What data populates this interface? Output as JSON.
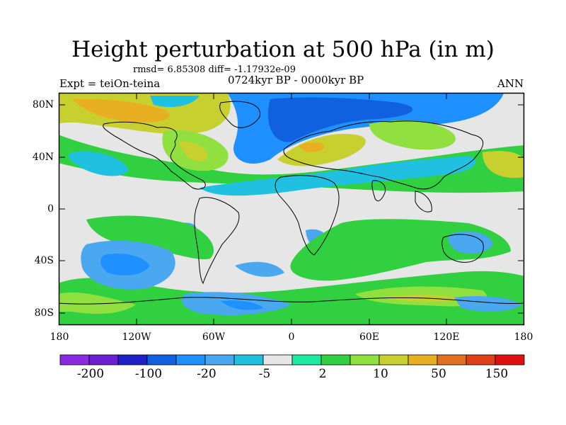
{
  "title": "Height perturbation at 500 hPa (in m)",
  "stats": "rmsd= 6.85308 diff= -1.17932e-09",
  "experiment": "Expt = teiOn-teina",
  "period": "0724kyr BP - 0000kyr BP",
  "season": "ANN",
  "y_ticks": [
    "80N",
    "40N",
    "0",
    "40S",
    "80S"
  ],
  "x_ticks": [
    "180",
    "120W",
    "60W",
    "0",
    "60E",
    "120E",
    "180"
  ],
  "colorbar": {
    "colors": [
      "#8a2be2",
      "#6a1fd0",
      "#2020c8",
      "#1060e0",
      "#1e90ff",
      "#4aa8f0",
      "#20c0e0",
      "#e6e6e6",
      "#1de9a0",
      "#30d040",
      "#90e040",
      "#c8d030",
      "#e8b020",
      "#e07020",
      "#e04018",
      "#e01010"
    ],
    "labels": [
      "-200",
      "-100",
      "-20",
      "-5",
      "2",
      "10",
      "50",
      "150"
    ]
  }
}
